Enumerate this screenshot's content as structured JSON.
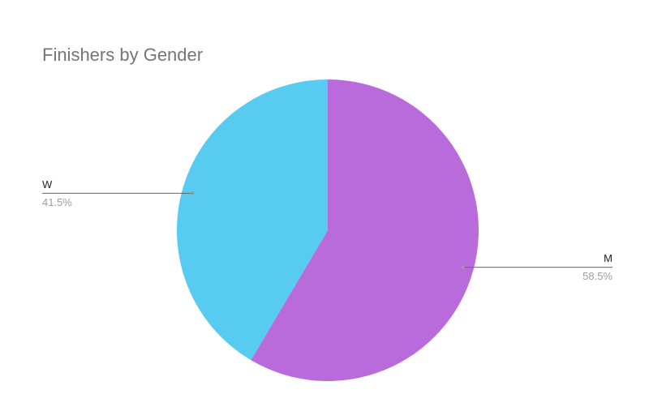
{
  "chart_data": {
    "type": "pie",
    "title": "Finishers by Gender",
    "categories": [
      "M",
      "W"
    ],
    "values": [
      58.5,
      41.5
    ],
    "value_labels": [
      "58.5%",
      "41.5%"
    ],
    "colors": [
      "#ba6bdb",
      "#57cbf0"
    ]
  }
}
